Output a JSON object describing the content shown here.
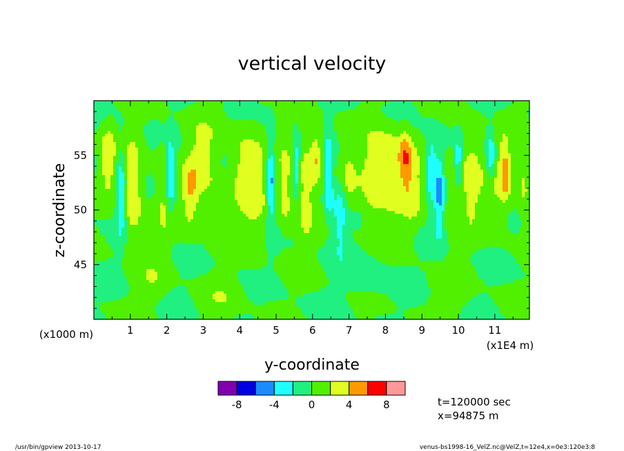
{
  "chart_data": {
    "type": "heatmap",
    "title": "vertical velocity",
    "xlabel": "y-coordinate",
    "ylabel": "z-coordinate",
    "x_scale_note": "(x1E4 m)",
    "y_scale_note": "(x1000 m)",
    "x_ticks": [
      "1",
      "2",
      "3",
      "4",
      "5",
      "6",
      "7",
      "8",
      "9",
      "10",
      "11"
    ],
    "y_ticks": [
      "45",
      "50",
      "55"
    ],
    "xlim": [
      0,
      11.95
    ],
    "ylim": [
      40,
      60
    ],
    "palette": [
      "#8000b0",
      "#0000e0",
      "#1a8cff",
      "#20ffff",
      "#20f080",
      "#50f000",
      "#e0ff20",
      "#ff9900",
      "#ff0000",
      "#ff9999"
    ],
    "colorbar_ticks": [
      "-8",
      "-4",
      "0",
      "4",
      "8"
    ],
    "colorbar_values": [
      -8,
      -4,
      0,
      4,
      8
    ],
    "background_value": 0,
    "features": [
      {
        "y": 0.38,
        "z": 54.8,
        "ry": 0.22,
        "rz": 3.0,
        "w": 3.5
      },
      {
        "y": 0.75,
        "z": 51.5,
        "ry": 0.14,
        "rz": 4.0,
        "w": -5
      },
      {
        "y": 1.05,
        "z": 51.5,
        "ry": 0.3,
        "rz": 5.0,
        "w": 3.8
      },
      {
        "y": 1.95,
        "z": 52.0,
        "ry": 0.25,
        "rz": 4.5,
        "w": 2.5
      },
      {
        "y": 2.1,
        "z": 53.0,
        "ry": 0.12,
        "rz": 3.2,
        "w": -5.5
      },
      {
        "y": 2.65,
        "z": 51.5,
        "ry": 0.25,
        "rz": 3.0,
        "w": 3.6
      },
      {
        "y": 3.0,
        "z": 55.0,
        "ry": 0.4,
        "rz": 3.5,
        "w": 2.5
      },
      {
        "y": 3.3,
        "z": 50.0,
        "ry": 0.3,
        "rz": 3.0,
        "w": 1.5
      },
      {
        "y": 4.05,
        "z": 53.5,
        "ry": 0.35,
        "rz": 4.0,
        "w": 2.6
      },
      {
        "y": 4.45,
        "z": 52.0,
        "ry": 0.35,
        "rz": 5.0,
        "w": 2.4
      },
      {
        "y": 4.85,
        "z": 52.6,
        "ry": 0.12,
        "rz": 4.0,
        "w": -5
      },
      {
        "y": 5.25,
        "z": 52.0,
        "ry": 0.22,
        "rz": 4.0,
        "w": 3.0
      },
      {
        "y": 5.55,
        "z": 54.0,
        "ry": 0.1,
        "rz": 2.5,
        "w": -4.5
      },
      {
        "y": 5.8,
        "z": 52.0,
        "ry": 0.25,
        "rz": 5.0,
        "w": 3.2
      },
      {
        "y": 6.1,
        "z": 55.0,
        "ry": 0.16,
        "rz": 2.5,
        "w": 3.6
      },
      {
        "y": 6.45,
        "z": 53.0,
        "ry": 0.12,
        "rz": 3.5,
        "w": -4.5
      },
      {
        "y": 6.75,
        "z": 50.0,
        "ry": 0.18,
        "rz": 4.0,
        "w": -3.6
      },
      {
        "y": 6.95,
        "z": 53.0,
        "ry": 0.3,
        "rz": 3.0,
        "w": 2.5
      },
      {
        "y": 7.6,
        "z": 53.0,
        "ry": 0.3,
        "rz": 4.0,
        "w": 2.4
      },
      {
        "y": 8.1,
        "z": 55.0,
        "ry": 0.45,
        "rz": 2.8,
        "w": 3.0
      },
      {
        "y": 8.15,
        "z": 52.0,
        "ry": 0.6,
        "rz": 3.5,
        "w": 2.3
      },
      {
        "y": 8.55,
        "z": 55.0,
        "ry": 0.15,
        "rz": 2.2,
        "w": 3.8
      },
      {
        "y": 8.75,
        "z": 52.0,
        "ry": 0.25,
        "rz": 3.5,
        "w": 2.3
      },
      {
        "y": 9.25,
        "z": 54.0,
        "ry": 0.15,
        "rz": 3.0,
        "w": -3.6
      },
      {
        "y": 9.5,
        "z": 51.5,
        "ry": 0.15,
        "rz": 4.0,
        "w": -4.5
      },
      {
        "y": 9.75,
        "z": 51.5,
        "ry": 0.2,
        "rz": 3.5,
        "w": 2.5
      },
      {
        "y": 10.0,
        "z": 54.5,
        "ry": 0.12,
        "rz": 2.0,
        "w": -3.4
      },
      {
        "y": 10.35,
        "z": 53.0,
        "ry": 0.3,
        "rz": 4.0,
        "w": 3.6
      },
      {
        "y": 10.9,
        "z": 55.0,
        "ry": 0.12,
        "rz": 2.2,
        "w": -4.5
      },
      {
        "y": 11.2,
        "z": 53.0,
        "ry": 0.3,
        "rz": 4.0,
        "w": 2.7
      },
      {
        "y": 11.3,
        "z": 53.5,
        "ry": 0.1,
        "rz": 2.0,
        "w": 3.6
      },
      {
        "y": 11.8,
        "z": 53.0,
        "ry": 0.2,
        "rz": 4.0,
        "w": 2.4
      },
      {
        "y": 1.6,
        "z": 43.5,
        "ry": 0.4,
        "rz": 2.0,
        "w": 1.5
      },
      {
        "y": 3.5,
        "z": 42.0,
        "ry": 0.5,
        "rz": 2.0,
        "w": 1.4
      },
      {
        "y": 7.5,
        "z": 44.0,
        "ry": 0.6,
        "rz": 2.0,
        "w": -1.2
      },
      {
        "y": 9.8,
        "z": 42.5,
        "ry": 0.5,
        "rz": 2.0,
        "w": 1.3
      }
    ]
  },
  "annotations": {
    "time": "t=120000 sec",
    "position": "x=94875 m"
  },
  "footer": {
    "left": "/usr/bin/gpview   2013-10-17",
    "right": "venus-bs1998-16_VelZ.nc@VelZ,t=12e4,x=0e3:120e3:8"
  }
}
